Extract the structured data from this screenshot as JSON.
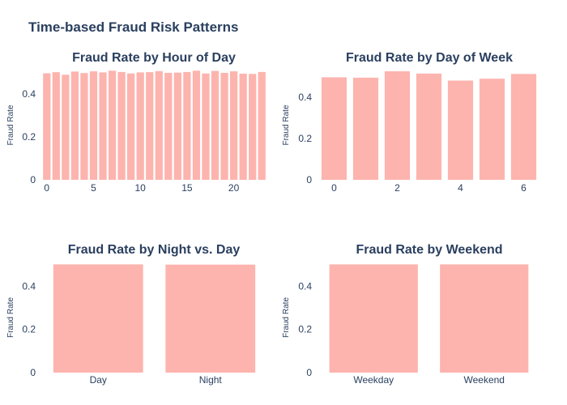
{
  "title": "Time-based Fraud Risk Patterns",
  "colors": {
    "bar": "#fdb4ae",
    "text": "#2a3f5f",
    "background": "#ffffff"
  },
  "chart_data": [
    {
      "type": "bar",
      "title": "Fraud Rate by Hour of Day",
      "ylabel": "Fraud Rate",
      "x": [
        0,
        1,
        2,
        3,
        4,
        5,
        6,
        7,
        8,
        9,
        10,
        11,
        12,
        13,
        14,
        15,
        16,
        17,
        18,
        19,
        20,
        21,
        22,
        23
      ],
      "values": [
        0.497,
        0.502,
        0.49,
        0.505,
        0.498,
        0.506,
        0.501,
        0.509,
        0.503,
        0.496,
        0.501,
        0.502,
        0.507,
        0.499,
        0.5,
        0.503,
        0.509,
        0.496,
        0.508,
        0.499,
        0.506,
        0.495,
        0.494,
        0.503
      ],
      "xticks": [
        0,
        5,
        10,
        15,
        20
      ],
      "yticks": [
        0,
        0.2,
        0.4
      ],
      "ylim": [
        0,
        0.51
      ],
      "xlim": [
        -0.5,
        23.5
      ]
    },
    {
      "type": "bar",
      "title": "Fraud Rate by Day of Week",
      "ylabel": "Fraud Rate",
      "x": [
        0,
        1,
        2,
        3,
        4,
        5,
        6
      ],
      "values": [
        0.497,
        0.495,
        0.526,
        0.515,
        0.481,
        0.49,
        0.513
      ],
      "xticks": [
        0,
        2,
        4,
        6
      ],
      "yticks": [
        0,
        0.2,
        0.4
      ],
      "ylim": [
        0,
        0.53
      ],
      "xlim": [
        -0.5,
        6.5
      ]
    },
    {
      "type": "bar",
      "title": "Fraud Rate by Night vs. Day",
      "ylabel": "Fraud Rate",
      "categories": [
        "Day",
        "Night"
      ],
      "values": [
        0.501,
        0.5
      ],
      "yticks": [
        0,
        0.2,
        0.4
      ],
      "ylim": [
        0,
        0.51
      ]
    },
    {
      "type": "bar",
      "title": "Fraud Rate by Weekend",
      "ylabel": "Fraud Rate",
      "categories": [
        "Weekday",
        "Weekend"
      ],
      "values": [
        0.501,
        0.501
      ],
      "yticks": [
        0,
        0.2,
        0.4
      ],
      "ylim": [
        0,
        0.51
      ]
    }
  ]
}
